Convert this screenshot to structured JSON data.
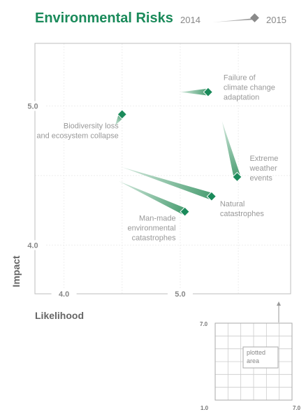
{
  "chart_data": {
    "type": "scatter",
    "title": "Environmental Risks",
    "legend": {
      "from_label": "2014",
      "to_label": "2015",
      "placement": "top-right"
    },
    "xlabel": "Likelihood",
    "ylabel": "Impact",
    "xlim": [
      3.75,
      5.95
    ],
    "ylim": [
      3.65,
      5.45
    ],
    "xticks": [
      {
        "value": 4.0,
        "label": "4.0"
      },
      {
        "value": 5.0,
        "label": "5.0"
      }
    ],
    "yticks": [
      {
        "value": 4.0,
        "label": "4.0"
      },
      {
        "value": 5.0,
        "label": "5.0"
      }
    ],
    "grid": true,
    "colors": {
      "marker": "#1a8a5a",
      "trail_start": "#d6eadf",
      "trail_end": "#4a9e72",
      "title": "#1a8a5a"
    },
    "series": [
      {
        "name": "Failure of climate change adaptation",
        "label_lines": [
          "Failure of",
          "climate change",
          "adaptation"
        ],
        "x2014": 5.0,
        "y2014": 5.1,
        "x2015": 5.24,
        "y2015": 5.1
      },
      {
        "name": "Biodiversity loss and ecosystem collapse",
        "label_lines": [
          "Biodiversity loss",
          "and ecosystem collapse"
        ],
        "x2014": 4.44,
        "y2014": 4.86,
        "x2015": 4.5,
        "y2015": 4.94
      },
      {
        "name": "Extreme weather events",
        "label_lines": [
          "Extreme",
          "weather",
          "events"
        ],
        "x2014": 5.36,
        "y2014": 4.89,
        "x2015": 5.49,
        "y2015": 4.49
      },
      {
        "name": "Natural catastrophes",
        "label_lines": [
          "Natural",
          "catastrophes"
        ],
        "x2014": 4.5,
        "y2014": 4.56,
        "x2015": 5.27,
        "y2015": 4.35
      },
      {
        "name": "Man-made environmental catastrophes",
        "label_lines": [
          "Man-made",
          "environmental",
          "catastrophes"
        ],
        "x2014": 4.47,
        "y2014": 4.46,
        "x2015": 5.04,
        "y2015": 4.24
      }
    ]
  },
  "inset": {
    "range_min_label": "1.0",
    "range_max_label": "7.0",
    "y_max_label": "7.0",
    "plotted_area_lines": [
      "plotted",
      "area"
    ]
  }
}
